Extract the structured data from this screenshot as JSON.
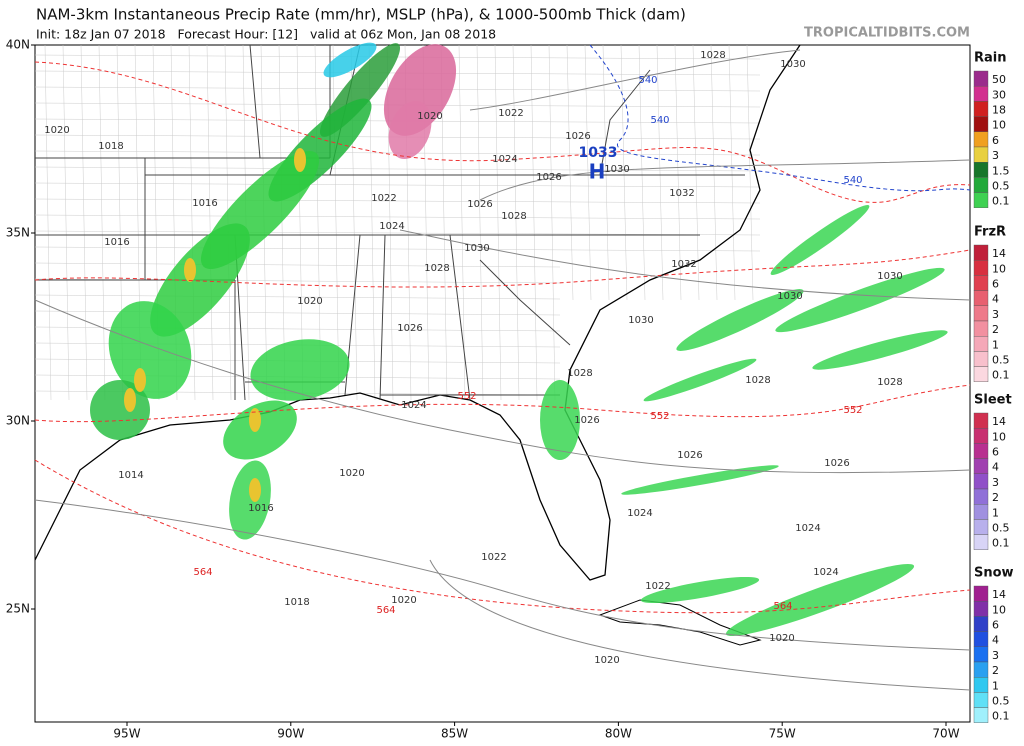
{
  "header": {
    "title": "NAM-3km Instantaneous Precip Rate (mm/hr), MSLP (hPa), & 1000-500mb Thick (dam)",
    "subtitle": "Init: 18z Jan 07 2018   Forecast Hour: [12]   valid at 06z Mon, Jan 08 2018",
    "credit": "TROPICALTIDBITS.COM"
  },
  "map": {
    "lat_labels": [
      "40N",
      "35N",
      "30N",
      "25N"
    ],
    "lon_labels": [
      "95W",
      "90W",
      "85W",
      "80W",
      "75W",
      "70W"
    ],
    "high": {
      "pressure": "1033",
      "letter": "H"
    },
    "isobar_labels": [
      "1028",
      "1030",
      "1020",
      "1018",
      "1022",
      "1020",
      "1024",
      "1026",
      "1030",
      "1026",
      "1032",
      "1022",
      "1026",
      "1028",
      "1024",
      "1016",
      "1016",
      "1030",
      "1032",
      "1028",
      "1020",
      "1026",
      "1030",
      "1030",
      "1030",
      "1028",
      "1028",
      "1028",
      "1024",
      "1026",
      "1026",
      "1026",
      "1014",
      "1020",
      "1016",
      "1024",
      "1024",
      "1022",
      "1018",
      "1020",
      "1022",
      "1024",
      "1020",
      "1020"
    ],
    "thickness_labels": [
      "552",
      "552",
      "552",
      "564",
      "564",
      "564"
    ],
    "cold_thickness_labels": [
      "540",
      "540",
      "540"
    ]
  },
  "legend": [
    {
      "title": "Rain",
      "labels": [
        "50",
        "30",
        "18",
        "10",
        "6",
        "3",
        "1.5",
        "0.5",
        "0.1"
      ]
    },
    {
      "title": "FrzR",
      "labels": [
        "14",
        "10",
        "6",
        "4",
        "3",
        "2",
        "1",
        "0.5",
        "0.1"
      ]
    },
    {
      "title": "Sleet",
      "labels": [
        "14",
        "10",
        "6",
        "4",
        "3",
        "2",
        "1",
        "0.5",
        "0.1"
      ]
    },
    {
      "title": "Snow",
      "labels": [
        "14",
        "10",
        "6",
        "4",
        "3",
        "2",
        "1",
        "0.5",
        "0.1"
      ]
    }
  ]
}
